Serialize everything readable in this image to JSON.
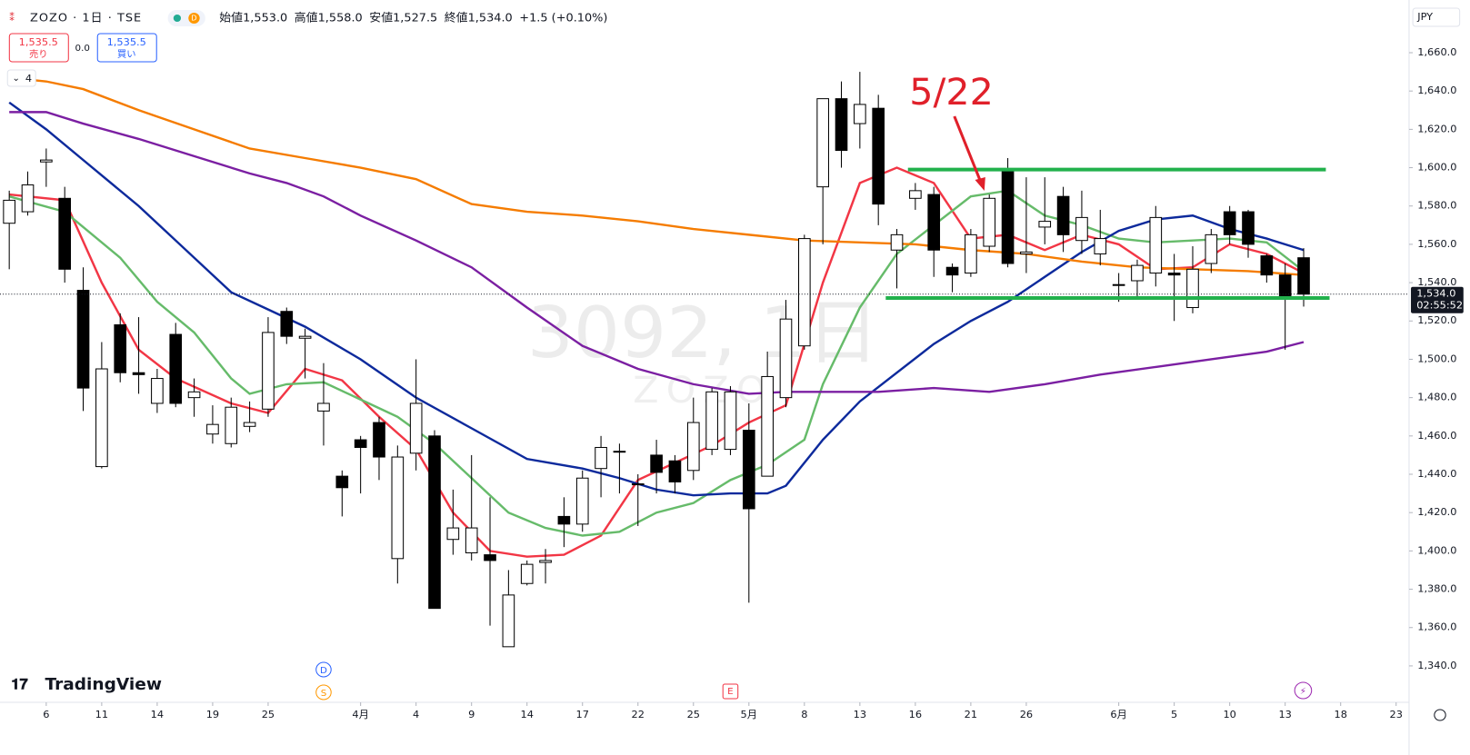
{
  "header": {
    "symbol": "ZOZO · 1日 · TSE",
    "flag": "D",
    "ohlc": [
      {
        "label": "始値",
        "value": "1,553.0"
      },
      {
        "label": "高値",
        "value": "1,558.0"
      },
      {
        "label": "安値",
        "value": "1,527.5"
      },
      {
        "label": "終値",
        "value": "1,534.0"
      }
    ],
    "change": "+1.5 (+0.10%)"
  },
  "trade": {
    "sell_price": "1,535.5",
    "sell_label": "売り",
    "spread": "0.0",
    "buy_price": "1,535.5",
    "buy_label": "買い"
  },
  "indicators_count": "4",
  "watermark": {
    "main": "3092, 1日",
    "sub": "ZOZO"
  },
  "currency": "JPY",
  "annotation": {
    "text": "5/22"
  },
  "logo": "TradingView",
  "chart_data": {
    "type": "candlestick",
    "open": [
      1571,
      1577,
      1603,
      1584,
      1536,
      1444,
      1518,
      1493,
      1477,
      1513,
      1480,
      1461,
      1456,
      1465,
      1474,
      1525,
      1511,
      1473,
      1439,
      1458,
      1467,
      1396,
      1451,
      1460,
      1406,
      1399,
      1398,
      1350,
      1383,
      1394,
      1418,
      1414,
      1443,
      1452,
      1435,
      1450,
      1447,
      1442,
      1453,
      1453,
      1463,
      1439,
      1480,
      1507,
      1590,
      1636,
      1623,
      1631,
      1557,
      1584,
      1586,
      1548,
      1545,
      1559,
      1598,
      1555,
      1569,
      1585,
      1562,
      1555,
      1539,
      1541,
      1545,
      1545,
      1527,
      1550,
      1577,
      1577,
      1554,
      1544,
      1553
    ],
    "high": [
      1588,
      1598,
      1610,
      1590,
      1548,
      1509,
      1524,
      1522,
      1495,
      1519,
      1490,
      1476,
      1480,
      1478,
      1522,
      1527,
      1516,
      1498,
      1442,
      1460,
      1470,
      1455,
      1500,
      1463,
      1432,
      1450,
      1428,
      1390,
      1395,
      1401,
      1428,
      1442,
      1460,
      1456,
      1440,
      1458,
      1450,
      1480,
      1485,
      1486,
      1477,
      1504,
      1531,
      1565,
      1636,
      1645,
      1650,
      1638,
      1568,
      1592,
      1590,
      1550,
      1568,
      1586,
      1605,
      1595,
      1595,
      1590,
      1588,
      1578,
      1545,
      1552,
      1580,
      1555,
      1559,
      1568,
      1580,
      1578,
      1555,
      1550,
      1558
    ],
    "low": [
      1547,
      1575,
      1590,
      1540,
      1473,
      1443,
      1488,
      1482,
      1472,
      1475,
      1470,
      1456,
      1454,
      1462,
      1470,
      1508,
      1490,
      1455,
      1418,
      1430,
      1437,
      1383,
      1442,
      1370,
      1398,
      1395,
      1361,
      1350,
      1382,
      1383,
      1402,
      1410,
      1428,
      1430,
      1413,
      1430,
      1430,
      1437,
      1450,
      1450,
      1373,
      1439,
      1475,
      1505,
      1560,
      1600,
      1610,
      1570,
      1537,
      1578,
      1543,
      1535,
      1543,
      1556,
      1548,
      1545,
      1560,
      1556,
      1555,
      1549,
      1530,
      1532,
      1538,
      1520,
      1524,
      1545,
      1560,
      1553,
      1540,
      1505,
      1527.5
    ],
    "close": [
      1583,
      1591,
      1604,
      1547,
      1485,
      1495,
      1493,
      1492,
      1490,
      1477,
      1483,
      1466,
      1475,
      1467,
      1514,
      1512,
      1512,
      1477,
      1433,
      1454,
      1449,
      1449,
      1477,
      1370,
      1412,
      1412,
      1395,
      1377,
      1393,
      1395,
      1414,
      1438,
      1454,
      1452,
      1435,
      1441,
      1436,
      1467,
      1483,
      1483,
      1422,
      1491,
      1521,
      1563,
      1636,
      1609,
      1633,
      1581,
      1565,
      1588,
      1557,
      1544,
      1565,
      1584,
      1550,
      1556,
      1572,
      1565,
      1574,
      1563,
      1539,
      1549,
      1574,
      1544,
      1547,
      1565,
      1565,
      1560,
      1544,
      1533,
      1534
    ],
    "up_color": "#ffffff",
    "down_color": "#000000",
    "wick_color": "#000000",
    "lines": [
      {
        "color": "#f23645",
        "x": [
          0,
          3,
          5,
          7,
          9,
          12,
          14,
          16,
          18,
          20,
          22,
          24,
          26,
          28,
          30,
          32,
          34,
          36,
          38,
          40,
          42,
          44,
          46,
          48,
          50,
          52,
          54,
          56,
          58,
          60,
          62,
          64,
          66,
          68,
          70
        ],
        "values": [
          1586,
          1583,
          1540,
          1505,
          1490,
          1477,
          1472,
          1495,
          1489,
          1470,
          1453,
          1420,
          1400,
          1397,
          1398,
          1408,
          1437,
          1446,
          1455,
          1467,
          1476,
          1540,
          1592,
          1600,
          1592,
          1563,
          1565,
          1557,
          1565,
          1560,
          1547,
          1548,
          1560,
          1555,
          1545
        ]
      },
      {
        "color": "#66bb6a",
        "x": [
          0,
          3,
          6,
          8,
          10,
          12,
          13,
          15,
          17,
          19,
          21,
          23,
          25,
          27,
          29,
          31,
          33,
          35,
          37,
          39,
          41,
          43,
          44,
          46,
          48,
          50,
          52,
          54,
          56,
          58,
          60,
          62,
          64,
          66,
          68,
          70
        ],
        "values": [
          1585,
          1577,
          1553,
          1530,
          1514,
          1490,
          1482,
          1487,
          1488,
          1479,
          1470,
          1456,
          1438,
          1420,
          1412,
          1408,
          1410,
          1420,
          1425,
          1437,
          1445,
          1458,
          1487,
          1527,
          1555,
          1570,
          1585,
          1588,
          1575,
          1570,
          1563,
          1561,
          1562,
          1563,
          1561,
          1546
        ]
      },
      {
        "color": "#0d2a9c",
        "x": [
          0,
          2,
          4,
          7,
          9,
          12,
          14,
          16,
          19,
          22,
          25,
          28,
          31,
          33,
          35,
          37,
          39,
          41,
          42,
          44,
          46,
          48,
          50,
          52,
          54,
          56,
          58,
          60,
          62,
          64,
          66,
          68,
          70
        ],
        "values": [
          1634,
          1620,
          1604,
          1580,
          1562,
          1535,
          1526,
          1517,
          1500,
          1480,
          1464,
          1448,
          1443,
          1438,
          1432,
          1429,
          1430,
          1430,
          1434,
          1458,
          1478,
          1493,
          1508,
          1520,
          1530,
          1543,
          1556,
          1567,
          1573,
          1575,
          1568,
          1563,
          1557
        ]
      },
      {
        "color": "#7b1fa2",
        "x": [
          0,
          2,
          4,
          7,
          10,
          13,
          15,
          17,
          19,
          22,
          25,
          28,
          31,
          34,
          37,
          40,
          42,
          44,
          47,
          50,
          53,
          56,
          59,
          62,
          65,
          68,
          70
        ],
        "values": [
          1629,
          1629,
          1623,
          1615,
          1606,
          1597,
          1592,
          1585,
          1575,
          1562,
          1548,
          1527,
          1507,
          1495,
          1487,
          1482,
          1483,
          1483,
          1483,
          1485,
          1483,
          1487,
          1492,
          1496,
          1500,
          1504,
          1509
        ]
      },
      {
        "color": "#f57c00",
        "x": [
          0,
          2,
          4,
          7,
          10,
          13,
          16,
          19,
          22,
          25,
          28,
          31,
          34,
          37,
          40,
          43,
          46,
          49,
          52,
          55,
          58,
          61,
          64,
          67,
          70
        ],
        "values": [
          1647,
          1645,
          1641,
          1630,
          1620,
          1610,
          1605,
          1600,
          1594,
          1581,
          1577,
          1575,
          1572,
          1568,
          1565,
          1562,
          1561,
          1560,
          1557,
          1555,
          1551,
          1548,
          1547,
          1546,
          1544
        ]
      }
    ],
    "hlines": [
      {
        "value": 1599,
        "x": [
          48.6,
          71.2
        ],
        "color": "#22b14c"
      },
      {
        "value": 1532,
        "x": [
          47.4,
          71.4
        ],
        "color": "#22b14c"
      }
    ],
    "last_price": {
      "value": 1534,
      "label": "1,534.0",
      "countdown": "02:55:52",
      "color": "#131722"
    },
    "events": [
      {
        "label": "D",
        "x": 17,
        "color": "#2962ff"
      },
      {
        "label": "S",
        "x": 17,
        "color": "#ff9800"
      },
      {
        "label": "E",
        "x": 39,
        "color": "#f23645"
      }
    ],
    "xlim": [
      -0.5,
      75.7
    ],
    "ylim": [
      1321,
      1687.5
    ],
    "xticks": [
      {
        "value": 2,
        "label": "6"
      },
      {
        "value": 5,
        "label": "11"
      },
      {
        "value": 8,
        "label": "14"
      },
      {
        "value": 11,
        "label": "19"
      },
      {
        "value": 14,
        "label": "25"
      },
      {
        "value": 19,
        "label": "4月"
      },
      {
        "value": 22,
        "label": "4"
      },
      {
        "value": 25,
        "label": "9"
      },
      {
        "value": 28,
        "label": "14"
      },
      {
        "value": 31,
        "label": "17"
      },
      {
        "value": 34,
        "label": "22"
      },
      {
        "value": 37,
        "label": "25"
      },
      {
        "value": 40,
        "label": "5月"
      },
      {
        "value": 43,
        "label": "8"
      },
      {
        "value": 46,
        "label": "13"
      },
      {
        "value": 49,
        "label": "16"
      },
      {
        "value": 52,
        "label": "21"
      },
      {
        "value": 55,
        "label": "26"
      },
      {
        "value": 60,
        "label": "6月"
      },
      {
        "value": 63,
        "label": "5"
      },
      {
        "value": 66,
        "label": "10"
      },
      {
        "value": 69,
        "label": "13"
      },
      {
        "value": 72,
        "label": "18"
      },
      {
        "value": 75,
        "label": "23"
      }
    ],
    "yticks": [
      {
        "value": 1340,
        "label": "1,340.0"
      },
      {
        "value": 1360,
        "label": "1,360.0"
      },
      {
        "value": 1380,
        "label": "1,380.0"
      },
      {
        "value": 1400,
        "label": "1,400.0"
      },
      {
        "value": 1420,
        "label": "1,420.0"
      },
      {
        "value": 1440,
        "label": "1,440.0"
      },
      {
        "value": 1460,
        "label": "1,460.0"
      },
      {
        "value": 1480,
        "label": "1,480.0"
      },
      {
        "value": 1500,
        "label": "1,500.0"
      },
      {
        "value": 1520,
        "label": "1,520.0"
      },
      {
        "value": 1540,
        "label": "1,540.0"
      },
      {
        "value": 1560,
        "label": "1,560.0"
      },
      {
        "value": 1580,
        "label": "1,580.0"
      },
      {
        "value": 1600,
        "label": "1,600.0"
      },
      {
        "value": 1620,
        "label": "1,620.0"
      },
      {
        "value": 1640,
        "label": "1,640.0"
      },
      {
        "value": 1660,
        "label": "1,660.0"
      }
    ],
    "grid": false
  }
}
